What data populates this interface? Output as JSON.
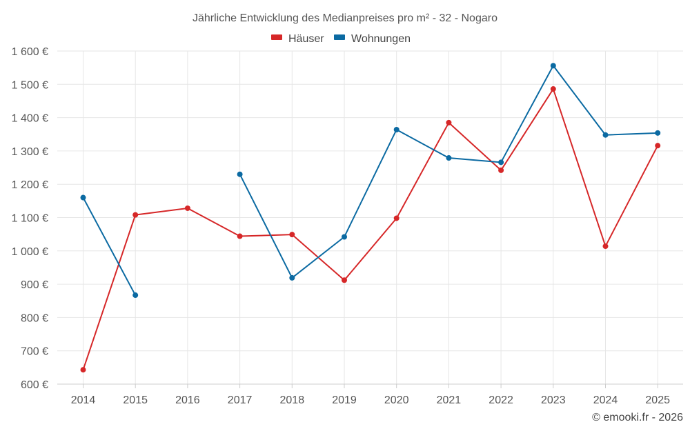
{
  "chart_data": {
    "type": "line",
    "title": "Jährliche Entwicklung des Medianpreises pro m² - 32 - Nogaro",
    "categories": [
      "2014",
      "2015",
      "2016",
      "2017",
      "2018",
      "2019",
      "2020",
      "2021",
      "2022",
      "2023",
      "2024",
      "2025"
    ],
    "y_ticks": [
      600,
      700,
      800,
      900,
      1000,
      1100,
      1200,
      1300,
      1400,
      1500,
      1600
    ],
    "y_tick_labels": [
      "600 €",
      "700 €",
      "800 €",
      "900 €",
      "1 000 €",
      "1 100 €",
      "1 200 €",
      "1 300 €",
      "1 400 €",
      "1 500 €",
      "1 600 €"
    ],
    "ylim": [
      600,
      1600
    ],
    "grid": true,
    "legend_position": "top-center",
    "series": [
      {
        "name": "Häuser",
        "color": "#d62728",
        "values": [
          643,
          1108,
          1128,
          1044,
          1049,
          912,
          1098,
          1385,
          1242,
          1486,
          1014,
          1316
        ]
      },
      {
        "name": "Wohnungen",
        "color": "#0b6aa2",
        "values": [
          1160,
          867,
          null,
          1230,
          919,
          1042,
          1364,
          1279,
          1266,
          1556,
          1348,
          1354
        ]
      }
    ]
  },
  "credit": "© emooki.fr - 2026"
}
